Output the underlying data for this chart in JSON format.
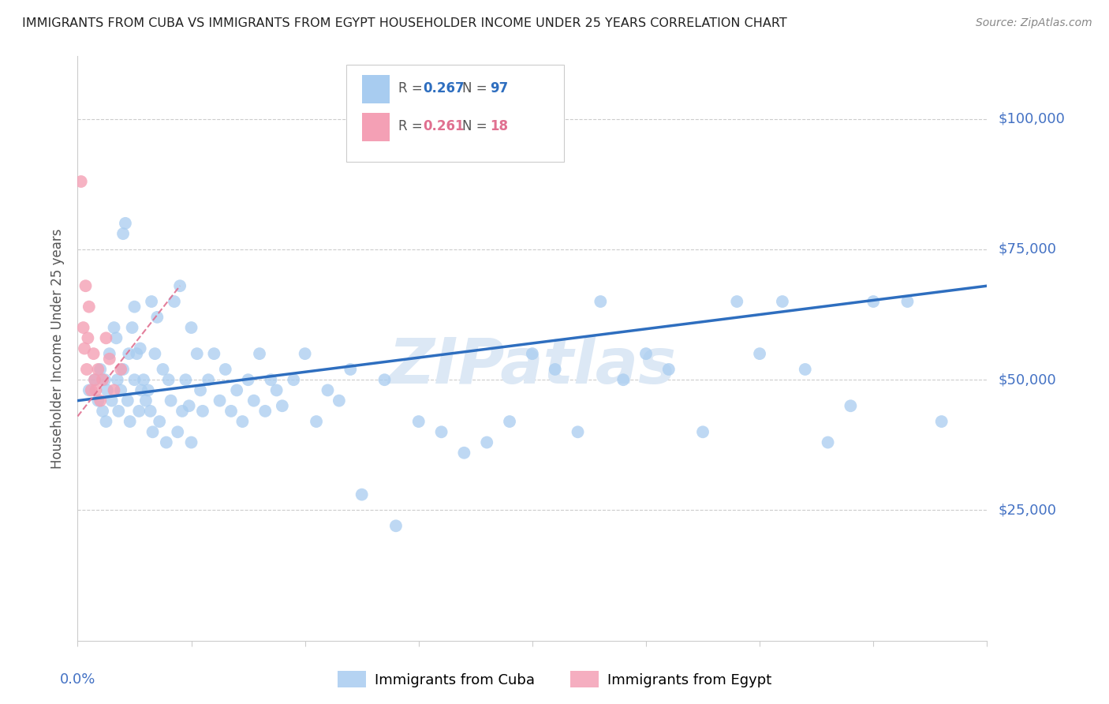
{
  "title": "IMMIGRANTS FROM CUBA VS IMMIGRANTS FROM EGYPT HOUSEHOLDER INCOME UNDER 25 YEARS CORRELATION CHART",
  "source": "Source: ZipAtlas.com",
  "ylabel": "Householder Income Under 25 years",
  "legend_cuba_r": "0.267",
  "legend_cuba_n": "97",
  "legend_egypt_r": "0.261",
  "legend_egypt_n": "18",
  "cuba_color": "#A8CCF0",
  "egypt_color": "#F4A0B5",
  "cuba_line_color": "#2E6EBF",
  "egypt_line_color": "#E07090",
  "axis_label_color": "#4472C4",
  "watermark": "ZIPatlas",
  "cuba_x": [
    0.01,
    0.015,
    0.018,
    0.02,
    0.022,
    0.024,
    0.025,
    0.026,
    0.028,
    0.03,
    0.032,
    0.034,
    0.035,
    0.036,
    0.038,
    0.04,
    0.04,
    0.042,
    0.044,
    0.045,
    0.046,
    0.048,
    0.05,
    0.05,
    0.052,
    0.054,
    0.055,
    0.056,
    0.058,
    0.06,
    0.062,
    0.064,
    0.065,
    0.066,
    0.068,
    0.07,
    0.072,
    0.075,
    0.078,
    0.08,
    0.082,
    0.085,
    0.088,
    0.09,
    0.092,
    0.095,
    0.098,
    0.1,
    0.1,
    0.105,
    0.108,
    0.11,
    0.115,
    0.12,
    0.125,
    0.13,
    0.135,
    0.14,
    0.145,
    0.15,
    0.155,
    0.16,
    0.165,
    0.17,
    0.175,
    0.18,
    0.19,
    0.2,
    0.21,
    0.22,
    0.23,
    0.24,
    0.25,
    0.27,
    0.28,
    0.3,
    0.32,
    0.34,
    0.36,
    0.38,
    0.4,
    0.42,
    0.44,
    0.46,
    0.48,
    0.5,
    0.52,
    0.55,
    0.58,
    0.6,
    0.62,
    0.64,
    0.66,
    0.68,
    0.7,
    0.73,
    0.76
  ],
  "cuba_y": [
    48000,
    50000,
    46000,
    52000,
    44000,
    50000,
    42000,
    48000,
    55000,
    46000,
    60000,
    58000,
    50000,
    44000,
    48000,
    52000,
    78000,
    80000,
    46000,
    55000,
    42000,
    60000,
    50000,
    64000,
    55000,
    44000,
    56000,
    48000,
    50000,
    46000,
    48000,
    44000,
    65000,
    40000,
    55000,
    62000,
    42000,
    52000,
    38000,
    50000,
    46000,
    65000,
    40000,
    68000,
    44000,
    50000,
    45000,
    60000,
    38000,
    55000,
    48000,
    44000,
    50000,
    55000,
    46000,
    52000,
    44000,
    48000,
    42000,
    50000,
    46000,
    55000,
    44000,
    50000,
    48000,
    45000,
    50000,
    55000,
    42000,
    48000,
    46000,
    52000,
    28000,
    50000,
    22000,
    42000,
    40000,
    36000,
    38000,
    42000,
    55000,
    52000,
    40000,
    65000,
    50000,
    55000,
    52000,
    40000,
    65000,
    55000,
    65000,
    52000,
    38000,
    45000,
    65000,
    65000,
    42000
  ],
  "egypt_x": [
    0.003,
    0.005,
    0.006,
    0.007,
    0.008,
    0.009,
    0.01,
    0.012,
    0.014,
    0.015,
    0.016,
    0.018,
    0.02,
    0.022,
    0.025,
    0.028,
    0.032,
    0.038
  ],
  "egypt_y": [
    88000,
    60000,
    56000,
    68000,
    52000,
    58000,
    64000,
    48000,
    55000,
    50000,
    48000,
    52000,
    46000,
    50000,
    58000,
    54000,
    48000,
    52000
  ],
  "xlim": [
    0.0,
    0.8
  ],
  "ylim": [
    0,
    112000
  ],
  "ytick_vals": [
    25000,
    50000,
    75000,
    100000
  ],
  "ytick_labels": [
    "$25,000",
    "$50,000",
    "$75,000",
    "$100,000"
  ],
  "grid_color": "#cccccc"
}
